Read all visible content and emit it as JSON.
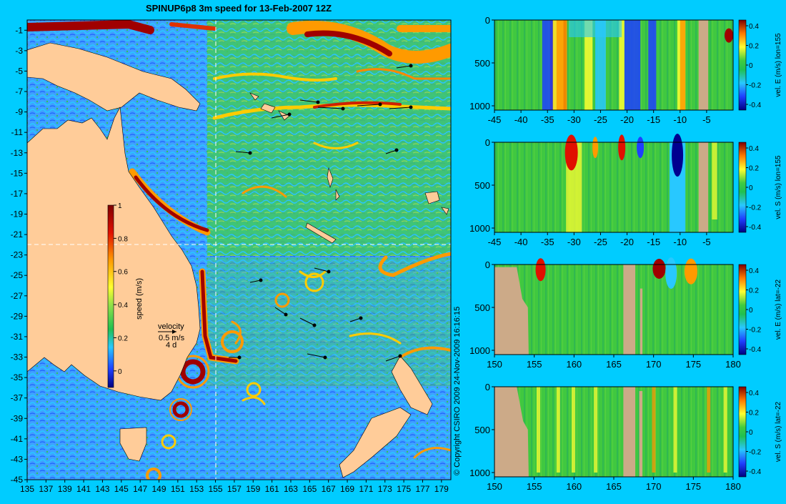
{
  "chart_data": [
    {
      "type": "heatmap",
      "title": "SPINUP6p8 3m speed for 13-Feb-2007 12Z",
      "x_ticks": [
        "135",
        "137",
        "139",
        "141",
        "143",
        "145",
        "147",
        "149",
        "151",
        "153",
        "155",
        "157",
        "159",
        "161",
        "163",
        "165",
        "167",
        "169",
        "171",
        "173",
        "175",
        "177",
        "179"
      ],
      "y_ticks": [
        "-1",
        "-3",
        "-5",
        "-7",
        "-9",
        "-11",
        "-13",
        "-15",
        "-17",
        "-19",
        "-21",
        "-23",
        "-25",
        "-27",
        "-29",
        "-31",
        "-33",
        "-35",
        "-37",
        "-39",
        "-41",
        "-43",
        "-45"
      ],
      "xlim": [
        135,
        180
      ],
      "ylim": [
        -45,
        0
      ],
      "section_lines": {
        "lon": 155,
        "lat": -22
      },
      "colorbar": {
        "label": "speed (m/s)",
        "ticks": [
          "1",
          "0.8",
          "0.6",
          "0.4",
          "0.2",
          "0"
        ],
        "range": [
          -0.1,
          1
        ]
      },
      "velocity_key": {
        "label": "velocity",
        "speed": "0.5 m/s",
        "duration": "4 d"
      },
      "copyright": "© Copyright CSIRO 2009   24-Nov-2009 16:16:15"
    },
    {
      "type": "heatmap",
      "colorbar_label": "vel. E (m/s) lon=155",
      "x_ticks": [
        "-45",
        "-40",
        "-35",
        "-30",
        "-25",
        "-20",
        "-15",
        "-10",
        "-5"
      ],
      "y_ticks": [
        "0",
        "500",
        "1000"
      ],
      "cb_ticks": [
        "0.4",
        "0.2",
        "0",
        "-0.2",
        "-0.4"
      ],
      "xlim": [
        -45,
        0
      ],
      "ylim": [
        1050,
        0
      ]
    },
    {
      "type": "heatmap",
      "colorbar_label": "vel. S (m/s) lon=155",
      "x_ticks": [
        "-45",
        "-40",
        "-35",
        "-30",
        "-25",
        "-20",
        "-15",
        "-10",
        "-5"
      ],
      "y_ticks": [
        "0",
        "500",
        "1000"
      ],
      "cb_ticks": [
        "0.4",
        "0.2",
        "0",
        "-0.2",
        "-0.4"
      ],
      "xlim": [
        -45,
        0
      ],
      "ylim": [
        1050,
        0
      ]
    },
    {
      "type": "heatmap",
      "colorbar_label": "vel. E (m/s) lat=-22",
      "x_ticks": [
        "150",
        "155",
        "160",
        "165",
        "170",
        "175",
        "180"
      ],
      "y_ticks": [
        "0",
        "500",
        "1000"
      ],
      "cb_ticks": [
        "0.4",
        "0.2",
        "0",
        "-0.2",
        "-0.4"
      ],
      "xlim": [
        150,
        180
      ],
      "ylim": [
        1050,
        0
      ]
    },
    {
      "type": "heatmap",
      "colorbar_label": "vel. S (m/s) lat=-22",
      "x_ticks": [
        "150",
        "155",
        "160",
        "165",
        "170",
        "175",
        "180"
      ],
      "y_ticks": [
        "0",
        "500",
        "1000"
      ],
      "cb_ticks": [
        "0.4",
        "0.2",
        "0",
        "-0.2",
        "-0.4"
      ],
      "xlim": [
        150,
        180
      ],
      "ylim": [
        1050,
        0
      ]
    }
  ]
}
